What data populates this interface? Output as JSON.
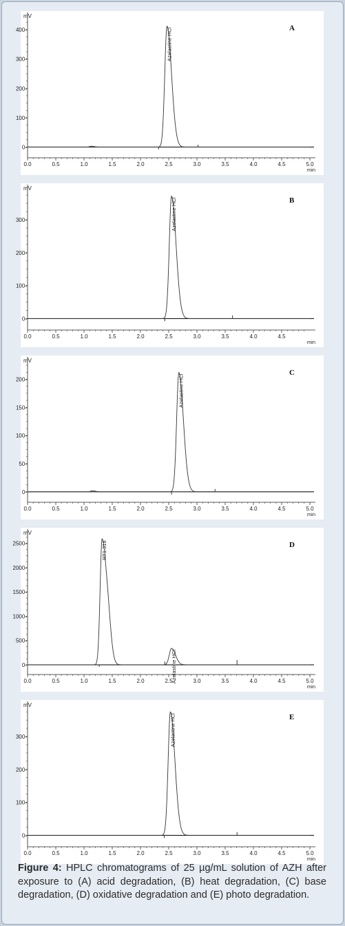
{
  "chart_data": [
    {
      "type": "line",
      "panel_label": "A",
      "yunit": "mV",
      "xunit": "min",
      "xlim": [
        0,
        5
      ],
      "ylim": [
        -20,
        440
      ],
      "xticks": [
        "0.0",
        "0.5",
        "1.0",
        "1.5",
        "2.0",
        "2.5",
        "3.0",
        "3.5",
        "4.0",
        "4.5",
        "5.0"
      ],
      "yticks": [
        {
          "v": 0,
          "t": "0"
        },
        {
          "v": 100,
          "t": "100"
        },
        {
          "v": 200,
          "t": "200"
        },
        {
          "v": 300,
          "t": "300"
        },
        {
          "v": 400,
          "t": "400"
        }
      ],
      "peaks": [
        {
          "rt": 1.13,
          "h": 3,
          "wl": 0.03,
          "wr": 0.05
        },
        {
          "rt": 2.47,
          "h": 412,
          "wl": 0.04,
          "wr": 0.08,
          "label": "Azelastine HCl"
        }
      ],
      "spikes": [
        {
          "x": 2.32,
          "h": -8
        },
        {
          "x": 3.02,
          "h": 8
        }
      ]
    },
    {
      "type": "line",
      "panel_label": "B",
      "yunit": "mV",
      "xunit": "min",
      "xlim": [
        0,
        5
      ],
      "ylim": [
        -20,
        390
      ],
      "xticks": [
        "0.0",
        "0.5",
        "1.0",
        "1.5",
        "2.0",
        "2.5",
        "3.0",
        "3.5",
        "4.0",
        "4.5"
      ],
      "yticks": [
        {
          "v": 0,
          "t": "0"
        },
        {
          "v": 100,
          "t": "100"
        },
        {
          "v": 200,
          "t": "200"
        },
        {
          "v": 300,
          "t": "300"
        }
      ],
      "peaks": [
        {
          "rt": 2.55,
          "h": 372,
          "wl": 0.04,
          "wr": 0.08,
          "label": "Azelastine HCl"
        }
      ],
      "spikes": [
        {
          "x": 2.43,
          "h": -8
        },
        {
          "x": 3.63,
          "h": 10
        }
      ]
    },
    {
      "type": "line",
      "panel_label": "C",
      "yunit": "mV",
      "xunit": "min",
      "xlim": [
        0,
        5
      ],
      "ylim": [
        -10,
        230
      ],
      "xticks": [
        "0.0",
        "0.5",
        "1.0",
        "1.5",
        "2.0",
        "2.5",
        "3.0",
        "3.5",
        "4.0",
        "4.5",
        "5.0"
      ],
      "yticks": [
        {
          "v": 0,
          "t": "0"
        },
        {
          "v": 50,
          "t": "50"
        },
        {
          "v": 100,
          "t": "100"
        },
        {
          "v": 150,
          "t": "150"
        },
        {
          "v": 200,
          "t": "200"
        }
      ],
      "peaks": [
        {
          "rt": 1.15,
          "h": 2,
          "wl": 0.03,
          "wr": 0.05
        },
        {
          "rt": 2.68,
          "h": 212,
          "wl": 0.04,
          "wr": 0.08,
          "label": "Azelastine HCl"
        }
      ],
      "spikes": [
        {
          "x": 2.55,
          "h": -5
        },
        {
          "x": 3.32,
          "h": 5
        }
      ]
    },
    {
      "type": "line",
      "panel_label": "D",
      "yunit": "mV",
      "xunit": "min",
      "xlim": [
        0,
        5
      ],
      "ylim": [
        -100,
        2680
      ],
      "xticks": [
        "0.0",
        "0.5",
        "1.0",
        "1.5",
        "2.0",
        "2.5",
        "3.0",
        "3.5",
        "4.0",
        "4.5",
        "5.0"
      ],
      "yticks": [
        {
          "v": 0,
          "t": "0"
        },
        {
          "v": 500,
          "t": "500"
        },
        {
          "v": 1000,
          "t": "1000"
        },
        {
          "v": 1500,
          "t": "1500"
        },
        {
          "v": 2000,
          "t": "2000"
        },
        {
          "v": 2500,
          "t": "2500"
        }
      ],
      "peaks": [
        {
          "rt": 1.32,
          "h": 2590,
          "wl": 0.035,
          "wr": 0.085,
          "label": "RT1.316"
        },
        {
          "rt": 1.44,
          "h": 300,
          "wl": 0.04,
          "wr": 0.05
        },
        {
          "rt": 2.55,
          "h": 340,
          "wl": 0.04,
          "wr": 0.07,
          "label": "Azelastine HCl"
        }
      ],
      "spikes": [
        {
          "x": 1.27,
          "h": -40
        },
        {
          "x": 2.43,
          "h": 70
        },
        {
          "x": 3.71,
          "h": 100
        }
      ]
    },
    {
      "type": "line",
      "panel_label": "E",
      "yunit": "mV",
      "xunit": "min",
      "xlim": [
        0,
        5
      ],
      "ylim": [
        -20,
        390
      ],
      "xticks": [
        "0.0",
        "0.5",
        "1.0",
        "1.5",
        "2.0",
        "2.5",
        "3.0",
        "3.5",
        "4.0",
        "4.5",
        "5.0"
      ],
      "yticks": [
        {
          "v": 0,
          "t": "0"
        },
        {
          "v": 100,
          "t": "100"
        },
        {
          "v": 200,
          "t": "200"
        },
        {
          "v": 300,
          "t": "300"
        }
      ],
      "peaks": [
        {
          "rt": 2.53,
          "h": 375,
          "wl": 0.04,
          "wr": 0.08,
          "label": "Azelastine HCl"
        }
      ],
      "spikes": [
        {
          "x": 2.42,
          "h": -8
        },
        {
          "x": 3.71,
          "h": 10
        }
      ]
    }
  ],
  "caption": {
    "lead": "Figure 4:",
    "text": " HPLC chromatograms of 25 µg/mL solution of AZH after exposure to (A) acid degradation, (B) heat degradation, (C) base degradation, (D) oxidative degradation and (E) photo degradation."
  },
  "colors": {
    "trace": "#333333",
    "axis": "#222222",
    "baseline": "#1a1a1a"
  }
}
